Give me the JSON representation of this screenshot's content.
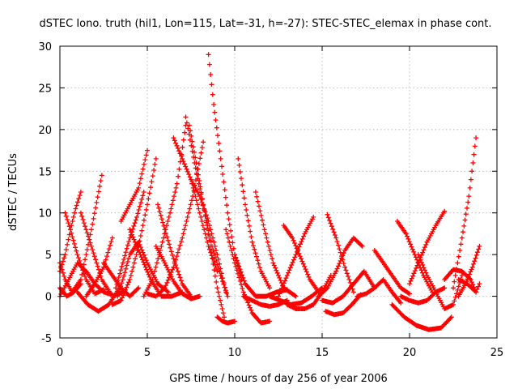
{
  "chart_data": {
    "type": "scatter",
    "title": "dSTEC Iono. truth (hil1, Lon=115, Lat=-31, h=-27): STEC-STEC_elemax in phase cont.",
    "xlabel": "GPS time / hours of day 256 of year 2006",
    "ylabel": "dSTEC  / TECUs",
    "xlim": [
      0,
      25
    ],
    "ylim": [
      -5,
      30
    ],
    "xticks": [
      0,
      5,
      10,
      15,
      20,
      25
    ],
    "yticks": [
      -5,
      0,
      5,
      10,
      15,
      20,
      25,
      30
    ],
    "grid": true,
    "marker": "plus",
    "color": "#ff0000",
    "series": [
      {
        "x": [
          0.0,
          0.3,
          0.7,
          1.2,
          1.8,
          2.4
        ],
        "y": [
          4.0,
          2.0,
          0.5,
          2.0,
          8.0,
          14.5
        ]
      },
      {
        "x": [
          0.3,
          0.6,
          1.0,
          1.5,
          2.0,
          2.5
        ],
        "y": [
          10.0,
          8.0,
          5.0,
          2.0,
          0.3,
          0.8
        ]
      },
      {
        "x": [
          0.0,
          0.5,
          1.0,
          1.5,
          2.0,
          2.5,
          3.0
        ],
        "y": [
          0.0,
          2.0,
          4.0,
          3.0,
          1.5,
          0.5,
          0.2
        ]
      },
      {
        "x": [
          0.0,
          0.3,
          0.6,
          0.9,
          1.2
        ],
        "y": [
          3.0,
          5.0,
          8.0,
          10.5,
          12.5
        ]
      },
      {
        "x": [
          0.0,
          0.4,
          0.8,
          1.2
        ],
        "y": [
          1.0,
          0.0,
          0.5,
          1.5
        ]
      },
      {
        "x": [
          1.2,
          1.8,
          2.4,
          3.0,
          3.6
        ],
        "y": [
          10.0,
          6.0,
          2.0,
          0.0,
          0.5
        ]
      },
      {
        "x": [
          1.0,
          1.6,
          2.2,
          2.8,
          3.4
        ],
        "y": [
          0.5,
          -1.0,
          -1.8,
          -1.0,
          1.0
        ]
      },
      {
        "x": [
          1.5,
          2.0,
          2.5,
          3.0
        ],
        "y": [
          0.0,
          1.5,
          3.5,
          7.0
        ]
      },
      {
        "x": [
          2.5,
          3.0,
          3.5,
          4.0,
          4.5
        ],
        "y": [
          4.0,
          2.5,
          1.0,
          0.0,
          1.0
        ]
      },
      {
        "x": [
          3.3,
          3.6,
          4.0,
          4.5,
          5.0,
          5.6,
          6.2
        ],
        "y": [
          0.0,
          2.0,
          5.0,
          6.5,
          4.0,
          1.5,
          0.5
        ]
      },
      {
        "x": [
          3.5,
          4.0,
          4.5,
          5.0
        ],
        "y": [
          9.0,
          11.0,
          13.0,
          17.5
        ]
      },
      {
        "x": [
          3.0,
          3.5,
          4.0,
          4.5,
          5.0,
          5.5
        ],
        "y": [
          -1.0,
          -0.5,
          2.0,
          6.0,
          11.0,
          16.5
        ]
      },
      {
        "x": [
          3.2,
          3.6,
          4.0,
          4.4,
          4.8
        ],
        "y": [
          1.0,
          4.0,
          7.0,
          9.5,
          12.5
        ]
      },
      {
        "x": [
          4.0,
          4.6,
          5.2,
          5.8,
          6.4,
          7.0
        ],
        "y": [
          8.0,
          5.0,
          2.0,
          0.0,
          0.0,
          0.5
        ]
      },
      {
        "x": [
          5.0,
          5.5,
          6.0,
          6.5,
          7.0,
          7.6,
          8.2
        ],
        "y": [
          0.3,
          0.0,
          1.0,
          3.5,
          7.0,
          12.0,
          18.5
        ]
      },
      {
        "x": [
          5.6,
          6.0,
          6.5,
          7.0,
          7.5
        ],
        "y": [
          11.0,
          8.0,
          4.5,
          1.5,
          0.0
        ]
      },
      {
        "x": [
          4.8,
          5.3,
          5.8,
          6.3,
          6.7,
          7.2
        ],
        "y": [
          0.0,
          2.0,
          6.0,
          10.0,
          13.5,
          20.5
        ]
      },
      {
        "x": [
          6.5,
          7.0,
          7.5,
          8.0,
          8.5,
          9.0
        ],
        "y": [
          19.0,
          16.5,
          14.0,
          10.0,
          6.0,
          3.0
        ]
      },
      {
        "x": [
          7.2,
          7.7,
          8.2,
          8.7,
          9.2,
          9.6
        ],
        "y": [
          21.5,
          16.0,
          11.0,
          6.0,
          2.5,
          0.0
        ]
      },
      {
        "x": [
          7.4,
          7.8,
          8.2,
          8.6,
          9.0,
          9.4
        ],
        "y": [
          20.5,
          16.0,
          11.0,
          6.0,
          1.0,
          -2.5
        ]
      },
      {
        "x": [
          7.5,
          8.0,
          8.5,
          9.0,
          9.5
        ],
        "y": [
          14.0,
          12.0,
          9.0,
          5.0,
          0.5
        ]
      },
      {
        "x": [
          5.5,
          6.0,
          6.5,
          7.0,
          7.5,
          8.0
        ],
        "y": [
          6.0,
          4.0,
          1.8,
          0.3,
          -0.3,
          0.0
        ]
      },
      {
        "x": [
          8.5,
          8.8,
          9.2,
          9.6,
          10.0,
          10.4
        ],
        "y": [
          29.0,
          23.0,
          16.5,
          10.0,
          5.0,
          2.0
        ]
      },
      {
        "x": [
          9.0,
          9.3,
          9.6,
          10.0
        ],
        "y": [
          -2.5,
          -3.0,
          -3.2,
          -3.0
        ]
      },
      {
        "x": [
          10.2,
          10.6,
          11.0,
          11.5,
          12.0
        ],
        "y": [
          16.5,
          11.0,
          6.5,
          3.0,
          1.0
        ]
      },
      {
        "x": [
          9.5,
          10.0,
          10.5,
          11.0,
          11.5,
          12.0
        ],
        "y": [
          8.0,
          4.0,
          0.5,
          -2.0,
          -3.2,
          -3.0
        ]
      },
      {
        "x": [
          11.2,
          11.7,
          12.2,
          12.8,
          13.5
        ],
        "y": [
          12.5,
          8.0,
          4.0,
          1.0,
          0.0
        ]
      },
      {
        "x": [
          10.0,
          10.6,
          11.2,
          11.8,
          12.4,
          13.0
        ],
        "y": [
          5.0,
          1.5,
          0.0,
          0.0,
          0.5,
          0.8
        ]
      },
      {
        "x": [
          10.5,
          11.0,
          11.5,
          12.0,
          12.5,
          13.0
        ],
        "y": [
          0.0,
          -0.5,
          -1.0,
          -1.2,
          -1.0,
          -0.5
        ]
      },
      {
        "x": [
          12.8,
          13.3,
          13.8,
          14.3,
          14.8
        ],
        "y": [
          8.5,
          7.0,
          4.5,
          2.0,
          0.5
        ]
      },
      {
        "x": [
          12.5,
          13.0,
          13.5,
          14.0,
          14.5
        ],
        "y": [
          0.0,
          2.5,
          5.0,
          7.5,
          9.5
        ]
      },
      {
        "x": [
          13.0,
          13.5,
          14.0,
          14.5,
          15.0,
          15.5
        ],
        "y": [
          -1.0,
          -1.5,
          -1.5,
          -1.0,
          0.5,
          2.5
        ]
      },
      {
        "x": [
          12.0,
          12.6,
          13.2,
          13.8,
          14.4,
          15.0
        ],
        "y": [
          0.0,
          -0.5,
          -1.0,
          -0.8,
          0.0,
          1.0
        ]
      },
      {
        "x": [
          15.3,
          15.8,
          16.3,
          16.8
        ],
        "y": [
          9.8,
          7.0,
          3.5,
          0.5
        ]
      },
      {
        "x": [
          15.2,
          15.7,
          16.2,
          16.7,
          17.2
        ],
        "y": [
          -1.8,
          -2.2,
          -2.0,
          -1.0,
          0.2
        ]
      },
      {
        "x": [
          14.8,
          15.3,
          15.8,
          16.3,
          16.8,
          17.3
        ],
        "y": [
          0.0,
          1.0,
          3.0,
          5.5,
          7.0,
          6.0
        ]
      },
      {
        "x": [
          15.0,
          15.6,
          16.2,
          16.8,
          17.4,
          18.0
        ],
        "y": [
          -0.5,
          -0.8,
          0.0,
          1.5,
          3.0,
          1.0
        ]
      },
      {
        "x": [
          17.0,
          17.5,
          18.0,
          18.5,
          19.0,
          19.5
        ],
        "y": [
          0.0,
          0.3,
          1.0,
          2.0,
          0.5,
          -0.8
        ]
      },
      {
        "x": [
          18.0,
          18.5,
          19.0,
          19.5,
          20.0
        ],
        "y": [
          5.5,
          4.0,
          2.5,
          1.0,
          0.3
        ]
      },
      {
        "x": [
          19.3,
          19.8,
          20.3,
          20.8,
          21.3
        ],
        "y": [
          9.0,
          7.5,
          5.0,
          2.5,
          0.5
        ]
      },
      {
        "x": [
          19.5,
          20.0,
          20.5,
          21.0,
          21.5,
          22.0
        ],
        "y": [
          0.0,
          -0.5,
          -0.8,
          -0.5,
          0.5,
          1.0
        ]
      },
      {
        "x": [
          20.0,
          20.5,
          21.0,
          21.5,
          22.0
        ],
        "y": [
          1.5,
          4.0,
          6.5,
          8.5,
          10.2
        ]
      },
      {
        "x": [
          20.5,
          21.0,
          21.5,
          22.0,
          22.5,
          23.0
        ],
        "y": [
          5.0,
          2.5,
          0.5,
          -1.5,
          -1.0,
          2.5
        ]
      },
      {
        "x": [
          19.0,
          19.7,
          20.4,
          21.1,
          21.8,
          22.4
        ],
        "y": [
          -1.0,
          -2.5,
          -3.5,
          -4.0,
          -3.8,
          -2.5
        ]
      },
      {
        "x": [
          22.0,
          22.5,
          23.0,
          23.5,
          23.8
        ],
        "y": [
          2.0,
          3.2,
          3.0,
          2.0,
          0.5
        ]
      },
      {
        "x": [
          22.5,
          23.0,
          23.4,
          23.8
        ],
        "y": [
          1.0,
          7.0,
          12.0,
          19.0
        ]
      },
      {
        "x": [
          22.8,
          23.2,
          23.6,
          24.0
        ],
        "y": [
          0.0,
          1.5,
          3.5,
          6.0
        ]
      },
      {
        "x": [
          22.8,
          23.3,
          23.8,
          24.0
        ],
        "y": [
          2.0,
          1.5,
          0.5,
          1.5
        ]
      }
    ]
  }
}
